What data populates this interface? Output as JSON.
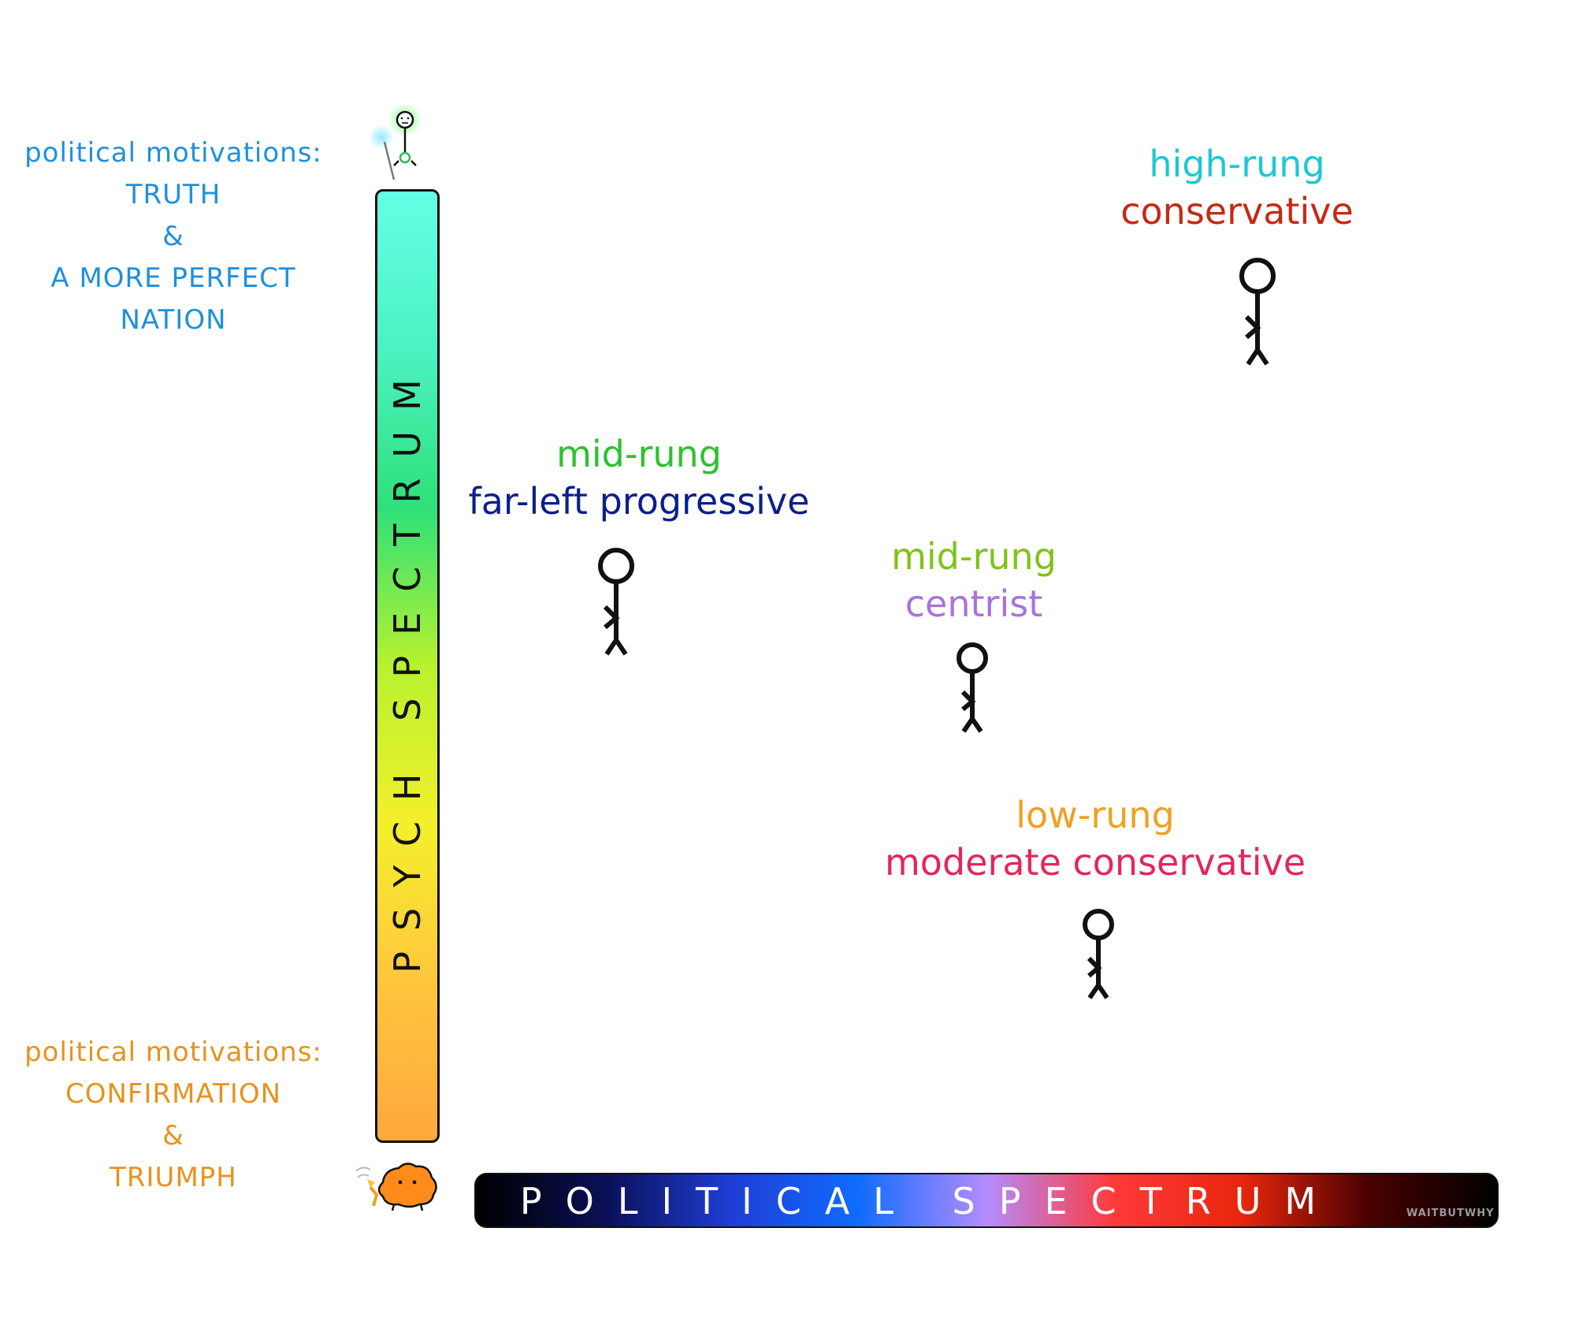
{
  "colors": {
    "background": "#ffffff",
    "top_motivation": "#1e90dd",
    "bottom_motivation": "#e8921c",
    "psych_gradient": [
      "#64ffe6",
      "#4cf2c2",
      "#2fe07a",
      "#b7f22e",
      "#f3f02a",
      "#ffc63e",
      "#ffa83e"
    ],
    "political_gradient": [
      "#000000",
      "#0a0f55",
      "#1f3dd6",
      "#0f6cff",
      "#b38cff",
      "#ff3a3a",
      "#e8260d",
      "#4a0000",
      "#000000"
    ]
  },
  "top_motivation": {
    "heading": "political motivations:",
    "lines": [
      "TRUTH",
      "&",
      "A MORE PERFECT",
      "NATION"
    ]
  },
  "bottom_motivation": {
    "heading": "political motivations:",
    "lines": [
      "CONFIRMATION",
      "&",
      "TRIUMPH"
    ]
  },
  "psych_spectrum": {
    "label": "PSYCH SPECTRUM",
    "top_icon": "glowing-sage-icon",
    "bottom_icon": "orange-primitive-mind-icon"
  },
  "political_spectrum": {
    "label": "POLITICAL SPECTRUM",
    "signature": "WAITBUTWHY"
  },
  "people": [
    {
      "rung": "high-rung",
      "politics": "conservative",
      "rung_color": "#1bc8d2",
      "politics_color": "#c42a14"
    },
    {
      "rung": "mid-rung",
      "politics": "far-left progressive",
      "rung_color": "#2ec12e",
      "politics_color": "#0b1f8a"
    },
    {
      "rung": "mid-rung",
      "politics": "centrist",
      "rung_color": "#7fc31a",
      "politics_color": "#a873dd"
    },
    {
      "rung": "low-rung",
      "politics": "moderate conservative",
      "rung_color": "#f0a020",
      "politics_color": "#e5265a"
    }
  ]
}
